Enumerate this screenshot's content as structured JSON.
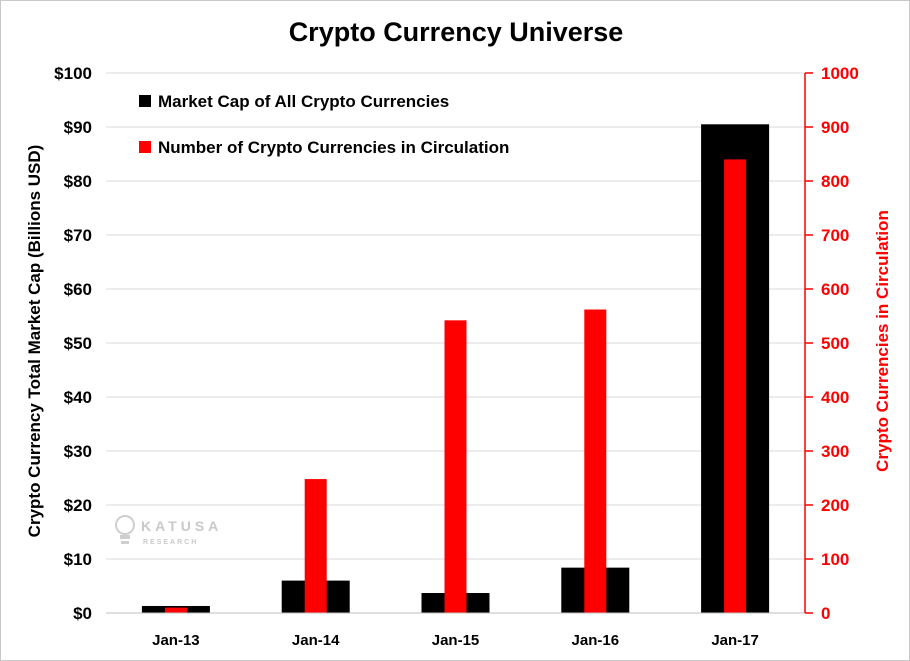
{
  "chart_data": {
    "type": "bar",
    "title": "Crypto Currency Universe",
    "categories": [
      "Jan-13",
      "Jan-14",
      "Jan-15",
      "Jan-16",
      "Jan-17"
    ],
    "series": [
      {
        "name": "Market Cap of All Crypto Currencies",
        "axis": "left",
        "color": "#000000",
        "values": [
          1.3,
          6.0,
          3.7,
          8.4,
          90.5
        ]
      },
      {
        "name": "Number of Crypto Currencies in Circulation",
        "axis": "right",
        "color": "#ff0000",
        "values": [
          10,
          248,
          542,
          562,
          840
        ]
      }
    ],
    "ylabel": "Crypto Currency Total Market Cap (Billions USD)",
    "y2label": "Crypto Currencies in Circulation",
    "ylim": [
      0,
      100
    ],
    "y2lim": [
      0,
      1000
    ],
    "yticks": [
      "$0",
      "$10",
      "$20",
      "$30",
      "$40",
      "$50",
      "$60",
      "$70",
      "$80",
      "$90",
      "$100"
    ],
    "y2ticks": [
      "0",
      "100",
      "200",
      "300",
      "400",
      "500",
      "600",
      "700",
      "800",
      "900",
      "1000"
    ],
    "grid": true,
    "legend_position": "top-left"
  },
  "watermark": {
    "text": "KATUSA",
    "subtext": "RESEARCH",
    "icon": "lightbulb-icon"
  }
}
